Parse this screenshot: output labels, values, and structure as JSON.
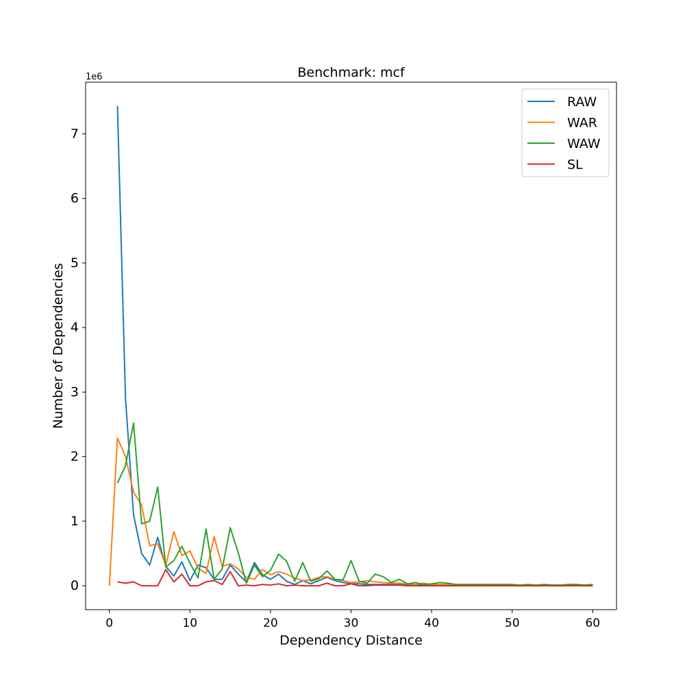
{
  "chart_data": {
    "type": "line",
    "title": "Benchmark: mcf",
    "xlabel": "Dependency Distance",
    "ylabel": "Number of Dependencies",
    "y_multiplier_label": "1e6",
    "xlim": [
      -2.95,
      62.95
    ],
    "ylim": [
      -0.37,
      7.8
    ],
    "xticks": [
      0,
      10,
      20,
      30,
      40,
      50,
      60
    ],
    "yticks": [
      0,
      1,
      2,
      3,
      4,
      5,
      6,
      7
    ],
    "grid": false,
    "legend_position": "top-right",
    "series": [
      {
        "name": "RAW",
        "color": "#1f77b4",
        "x": [
          1,
          2,
          3,
          4,
          5,
          6,
          7,
          8,
          9,
          10,
          11,
          12,
          13,
          14,
          15,
          16,
          17,
          18,
          19,
          20,
          21,
          22,
          23,
          24,
          25,
          26,
          27,
          28,
          29,
          30,
          31,
          32,
          33,
          34,
          35,
          36,
          37,
          38,
          39,
          40,
          41,
          42,
          43,
          44,
          45,
          46,
          47,
          48,
          49,
          50,
          51,
          52,
          53,
          54,
          55,
          56,
          57,
          58,
          59,
          60
        ],
        "values": [
          7.43,
          2.9,
          1.1,
          0.5,
          0.32,
          0.75,
          0.3,
          0.15,
          0.37,
          0.08,
          0.32,
          0.28,
          0.1,
          0.1,
          0.32,
          0.18,
          0.06,
          0.36,
          0.17,
          0.1,
          0.18,
          0.07,
          0.02,
          0.08,
          0.03,
          0.08,
          0.13,
          0.08,
          0.05,
          0.03,
          0.03,
          0.02,
          0.02,
          0.02,
          0.02,
          0.02,
          0.02,
          0.02,
          0.01,
          0.01,
          0.01,
          0.01,
          0.01,
          0.01,
          0.01,
          0.02,
          0.01,
          0.01,
          0.01,
          0.01,
          0.01,
          0.01,
          0.01,
          0.01,
          0.01,
          0.01,
          0.01,
          0.01,
          0.01,
          0.01
        ]
      },
      {
        "name": "WAR",
        "color": "#ff7f0e",
        "x": [
          0,
          1,
          2,
          3,
          4,
          5,
          6,
          7,
          8,
          9,
          10,
          11,
          12,
          13,
          14,
          15,
          16,
          17,
          18,
          19,
          20,
          21,
          22,
          23,
          24,
          25,
          26,
          27,
          28,
          29,
          30,
          31,
          32,
          33,
          34,
          35,
          36,
          37,
          38,
          39,
          40,
          41,
          42,
          43,
          44,
          45,
          46,
          47,
          48,
          49,
          50,
          51,
          52,
          53,
          54,
          55,
          56,
          57,
          58,
          59,
          60
        ],
        "values": [
          0.0,
          2.29,
          2.0,
          1.45,
          1.25,
          0.62,
          0.65,
          0.32,
          0.84,
          0.47,
          0.54,
          0.27,
          0.19,
          0.76,
          0.3,
          0.34,
          0.26,
          0.13,
          0.1,
          0.25,
          0.17,
          0.22,
          0.18,
          0.12,
          0.08,
          0.09,
          0.13,
          0.14,
          0.1,
          0.08,
          0.05,
          0.06,
          0.08,
          0.06,
          0.05,
          0.04,
          0.04,
          0.03,
          0.02,
          0.04,
          0.02,
          0.02,
          0.02,
          0.02,
          0.02,
          0.02,
          0.01,
          0.01,
          0.01,
          0.01,
          0.01,
          0.01,
          0.01,
          0.01,
          0.01,
          0.01,
          0.01,
          0.01,
          0.01,
          0.01,
          0.01
        ]
      },
      {
        "name": "WAW",
        "color": "#2ca02c",
        "x": [
          1,
          2,
          3,
          4,
          5,
          6,
          7,
          8,
          9,
          10,
          11,
          12,
          13,
          14,
          15,
          16,
          17,
          18,
          19,
          20,
          21,
          22,
          23,
          24,
          25,
          26,
          27,
          28,
          29,
          30,
          31,
          32,
          33,
          34,
          35,
          36,
          37,
          38,
          39,
          40,
          41,
          42,
          43,
          44,
          45,
          46,
          47,
          48,
          49,
          50,
          51,
          52,
          53,
          54,
          55,
          56,
          57,
          58,
          59,
          60
        ],
        "values": [
          1.59,
          1.86,
          2.52,
          0.96,
          1.0,
          1.53,
          0.29,
          0.39,
          0.61,
          0.35,
          0.12,
          0.88,
          0.1,
          0.26,
          0.9,
          0.51,
          0.04,
          0.32,
          0.14,
          0.24,
          0.49,
          0.38,
          0.07,
          0.36,
          0.07,
          0.11,
          0.23,
          0.1,
          0.09,
          0.39,
          0.07,
          0.04,
          0.18,
          0.14,
          0.05,
          0.1,
          0.03,
          0.05,
          0.02,
          0.03,
          0.05,
          0.04,
          0.02,
          0.02,
          0.02,
          0.02,
          0.02,
          0.02,
          0.02,
          0.02,
          0.01,
          0.02,
          0.01,
          0.02,
          0.01,
          0.01,
          0.02,
          0.02,
          0.01,
          0.02
        ]
      },
      {
        "name": "SL",
        "color": "#d62728",
        "x": [
          1,
          2,
          3,
          4,
          5,
          6,
          7,
          8,
          9,
          10,
          11,
          12,
          13,
          14,
          15,
          16,
          17,
          18,
          19,
          20,
          21,
          22,
          23,
          24,
          25,
          26,
          27,
          28,
          29,
          30,
          31,
          32,
          33,
          34,
          35,
          36,
          37,
          38,
          39,
          40,
          41,
          42,
          43,
          44,
          45,
          46,
          47,
          48,
          49,
          50,
          51,
          52,
          53,
          54,
          55,
          56,
          57,
          58,
          59,
          60
        ],
        "values": [
          0.06,
          0.04,
          0.06,
          0.0,
          0.0,
          0.0,
          0.25,
          0.06,
          0.18,
          0.0,
          0.0,
          0.06,
          0.08,
          0.02,
          0.22,
          0.0,
          0.01,
          0.0,
          0.02,
          0.01,
          0.03,
          0.0,
          0.01,
          0.0,
          0.0,
          0.0,
          0.04,
          0.0,
          0.0,
          0.03,
          0.0,
          0.0,
          0.01,
          0.01,
          0.01,
          0.01,
          0.0,
          0.0,
          0.0,
          0.0,
          0.0,
          0.0,
          0.0,
          0.0,
          0.0,
          0.0,
          0.0,
          0.0,
          0.0,
          0.0,
          0.0,
          0.0,
          0.0,
          0.0,
          0.0,
          0.0,
          0.0,
          0.0,
          0.0,
          0.0
        ]
      }
    ]
  }
}
